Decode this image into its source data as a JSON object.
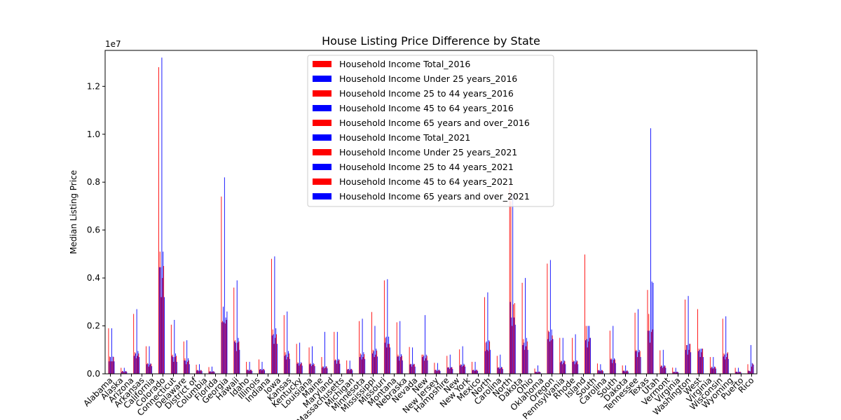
{
  "chart_data": {
    "type": "bar",
    "title": "House Listing Price Difference by State",
    "xlabel": "",
    "ylabel": "Median Listing Price",
    "scale_label": "1e7",
    "ylim": [
      0,
      13500000
    ],
    "yticks": [
      {
        "value": 0,
        "label": "0.0"
      },
      {
        "value": 2000000,
        "label": "0.2"
      },
      {
        "value": 4000000,
        "label": "0.4"
      },
      {
        "value": 6000000,
        "label": "0.6"
      },
      {
        "value": 8000000,
        "label": "0.8"
      },
      {
        "value": 10000000,
        "label": "1.0"
      },
      {
        "value": 12000000,
        "label": "1.2"
      }
    ],
    "grid": false,
    "legend_position": "top-center",
    "categories": [
      "Alabama",
      "Alaska",
      "Arizona",
      "Arkansas",
      "California",
      "Colorado",
      "Connecticut",
      "Delaware",
      "District of Columbia",
      "Florida",
      "Georgia",
      "Hawaii",
      "Idaho",
      "Illinois",
      "Indiana",
      "Iowa",
      "Kansas",
      "Kentucky",
      "Louisiana",
      "Maine",
      "Maryland",
      "Massachusetts",
      "Michigan",
      "Minnesota",
      "Mississippi",
      "Missouri",
      "Montana",
      "Nebraska",
      "Nevada",
      "New Hampshire",
      "New Jersey",
      "New Mexico",
      "New York",
      "North Carolina",
      "North Dakota",
      "Ohio",
      "Oklahoma",
      "Oregon",
      "Pennsylvania",
      "Rhode Island",
      "South Carolina",
      "South Dakota",
      "Tennessee",
      "Texas",
      "Utah",
      "Vermont",
      "Virginia",
      "Washington",
      "West Virginia",
      "Wisconsin",
      "Wyoming",
      "Puerto Rico"
    ],
    "tick_labels": [
      "Alabama",
      "Alaska",
      "Arizona",
      "Arkansas",
      "California",
      "Colorado",
      "Connecticut",
      "Delaware",
      "District of",
      "Columbia",
      "Florida",
      "Georgia",
      "Hawaii",
      "Idaho",
      "Illinois",
      "Indiana",
      "Iowa",
      "Kansas",
      "Kentucky",
      "Louisiana",
      "Maine",
      "Maryland",
      "Massachusetts",
      "Michigan",
      "Minnesota",
      "Mississippi",
      "Missouri",
      "Montana",
      "Nebraska",
      "Nevada",
      "New",
      "New Jersey",
      "Hampshire",
      "New",
      "New York",
      "Mexico",
      "North",
      "Carolina",
      "North",
      "Dakota",
      "Ohio",
      "Oklahoma",
      "Oregon",
      "Pennsylvania",
      "Rhode",
      "Island",
      "South",
      "Carolina",
      "South",
      "Dakota",
      "Tennessee",
      "Texas",
      "Utah",
      "Vermont",
      "Virginia",
      "Washington",
      "West",
      "Virginia",
      "Wisconsin",
      "Wyoming",
      "Puerto",
      "Rico"
    ],
    "series": [
      {
        "name": "Household Income Total_2016",
        "color": "#ff0000",
        "values": [
          1900000,
          250000,
          2500000,
          1150000,
          12800000,
          2050000,
          1350000,
          380000,
          280000,
          7400000,
          3600000,
          500000,
          600000,
          4800000,
          2450000,
          1250000,
          1100000,
          700000,
          1750000,
          560000,
          2200000,
          2580000,
          3900000,
          2150000,
          1120000,
          800000,
          460000,
          750000,
          1020000,
          500000,
          3200000,
          750000,
          8000000,
          3800000,
          220000,
          4600000,
          1500000,
          1500000,
          4980000,
          430000,
          1800000,
          350000,
          2550000,
          3500000,
          980000,
          260000,
          3100000,
          2700000,
          700000,
          2300000,
          250000,
          400000
        ]
      },
      {
        "name": "Household Income Under 25 years_2016",
        "color": "#0000ff",
        "values": [
          520000,
          80000,
          750000,
          400000,
          4450000,
          750000,
          560000,
          140000,
          90000,
          2150000,
          1350000,
          160000,
          170000,
          1600000,
          750000,
          420000,
          400000,
          260000,
          560000,
          180000,
          700000,
          850000,
          1300000,
          720000,
          390000,
          700000,
          150000,
          260000,
          350000,
          150000,
          950000,
          250000,
          3000000,
          1200000,
          80000,
          1450000,
          480000,
          500000,
          1400000,
          140000,
          600000,
          120000,
          950000,
          1800000,
          300000,
          70000,
          1000000,
          950000,
          240000,
          720000,
          80000,
          130000
        ]
      },
      {
        "name": "Household Income 25 to 44 years_2016",
        "color": "#ff0000",
        "values": [
          720000,
          120000,
          900000,
          450000,
          5100000,
          800000,
          650000,
          160000,
          110000,
          2200000,
          1400000,
          170000,
          200000,
          1850000,
          900000,
          480000,
          450000,
          310000,
          600000,
          200000,
          850000,
          1000000,
          1500000,
          800000,
          420000,
          800000,
          170000,
          280000,
          400000,
          170000,
          1300000,
          280000,
          7200000,
          1450000,
          90000,
          1800000,
          550000,
          550000,
          2000000,
          160000,
          650000,
          140000,
          1000000,
          2500000,
          350000,
          90000,
          1200000,
          1050000,
          300000,
          850000,
          90000,
          130000
        ]
      },
      {
        "name": "Household Income 45 to 64 years_2016",
        "color": "#0000ff",
        "values": [
          700000,
          110000,
          850000,
          420000,
          4450000,
          700000,
          550000,
          150000,
          100000,
          2800000,
          1300000,
          160000,
          200000,
          1650000,
          800000,
          450000,
          400000,
          300000,
          570000,
          200000,
          800000,
          950000,
          1550000,
          730000,
          400000,
          750000,
          160000,
          260000,
          380000,
          160000,
          1350000,
          260000,
          2350000,
          1300000,
          85000,
          1750000,
          520000,
          520000,
          1450000,
          150000,
          600000,
          130000,
          950000,
          1800000,
          330000,
          80000,
          1200000,
          1000000,
          280000,
          800000,
          85000,
          120000
        ]
      },
      {
        "name": "Household Income 65 years and over_2016",
        "color": "#ff0000",
        "values": [
          520000,
          80000,
          650000,
          300000,
          3200000,
          500000,
          400000,
          110000,
          75000,
          2150000,
          950000,
          120000,
          150000,
          1250000,
          600000,
          340000,
          320000,
          230000,
          420000,
          150000,
          600000,
          700000,
          1100000,
          550000,
          300000,
          550000,
          120000,
          200000,
          300000,
          120000,
          1000000,
          200000,
          2000000,
          1000000,
          60000,
          1350000,
          400000,
          400000,
          1100000,
          110000,
          450000,
          95000,
          700000,
          1300000,
          250000,
          65000,
          800000,
          700000,
          220000,
          600000,
          60000,
          100000
        ]
      },
      {
        "name": "Household Income Total_2021",
        "color": "#0000ff",
        "values": [
          1900000,
          250000,
          2700000,
          1150000,
          13200000,
          2250000,
          1400000,
          400000,
          300000,
          8200000,
          3900000,
          500000,
          500000,
          4900000,
          2600000,
          1300000,
          1150000,
          1750000,
          1750000,
          550000,
          2300000,
          2000000,
          3950000,
          2200000,
          1100000,
          2450000,
          450000,
          800000,
          1150000,
          500000,
          3400000,
          800000,
          7500000,
          4000000,
          350000,
          4750000,
          1500000,
          1650000,
          2000000,
          400000,
          2000000,
          350000,
          2700000,
          10250000,
          1000000,
          250000,
          3250000,
          1050000,
          700000,
          2400000,
          250000,
          1200000
        ]
      },
      {
        "name": "Household Income Under 25 years_2021",
        "color": "#ff0000",
        "values": [
          520000,
          70000,
          750000,
          380000,
          4000000,
          700000,
          500000,
          130000,
          90000,
          2100000,
          1300000,
          150000,
          160000,
          1500000,
          700000,
          400000,
          380000,
          260000,
          550000,
          170000,
          700000,
          800000,
          1250000,
          700000,
          380000,
          650000,
          140000,
          250000,
          340000,
          140000,
          950000,
          240000,
          2900000,
          1150000,
          75000,
          1400000,
          460000,
          480000,
          1350000,
          130000,
          580000,
          110000,
          900000,
          1750000,
          300000,
          70000,
          1000000,
          900000,
          230000,
          700000,
          75000,
          300000
        ]
      },
      {
        "name": "Household Income 25 to 44 years_2021",
        "color": "#0000ff",
        "values": [
          720000,
          120000,
          950000,
          430000,
          5100000,
          850000,
          650000,
          160000,
          110000,
          2350000,
          1500000,
          170000,
          200000,
          1900000,
          950000,
          480000,
          450000,
          320000,
          620000,
          210000,
          900000,
          1050000,
          1550000,
          820000,
          420000,
          800000,
          170000,
          290000,
          420000,
          170000,
          1400000,
          290000,
          2350000,
          1500000,
          95000,
          1850000,
          560000,
          560000,
          2000000,
          160000,
          650000,
          140000,
          1000000,
          3850000,
          360000,
          90000,
          1250000,
          1050000,
          300000,
          850000,
          90000,
          450000
        ]
      },
      {
        "name": "Household Income 45 to 64 years_2021",
        "color": "#ff0000",
        "values": [
          700000,
          110000,
          850000,
          420000,
          4500000,
          750000,
          560000,
          150000,
          100000,
          2250000,
          1350000,
          160000,
          200000,
          1650000,
          850000,
          450000,
          400000,
          300000,
          580000,
          200000,
          820000,
          970000,
          1250000,
          750000,
          400000,
          750000,
          160000,
          270000,
          380000,
          160000,
          1350000,
          270000,
          2950000,
          1350000,
          85000,
          1600000,
          530000,
          530000,
          1500000,
          150000,
          600000,
          130000,
          950000,
          1850000,
          330000,
          80000,
          1250000,
          1050000,
          290000,
          900000,
          85000,
          420000
        ]
      },
      {
        "name": "Household Income 65 years and over_2021",
        "color": "#0000ff",
        "values": [
          520000,
          80000,
          700000,
          320000,
          3200000,
          500000,
          400000,
          110000,
          75000,
          2600000,
          1000000,
          120000,
          150000,
          1250000,
          620000,
          340000,
          320000,
          230000,
          420000,
          150000,
          620000,
          720000,
          1100000,
          560000,
          300000,
          560000,
          120000,
          200000,
          300000,
          120000,
          1000000,
          200000,
          2050000,
          1000000,
          60000,
          1450000,
          400000,
          400000,
          1500000,
          110000,
          450000,
          95000,
          700000,
          3800000,
          250000,
          65000,
          900000,
          700000,
          220000,
          620000,
          60000,
          380000
        ]
      }
    ]
  }
}
